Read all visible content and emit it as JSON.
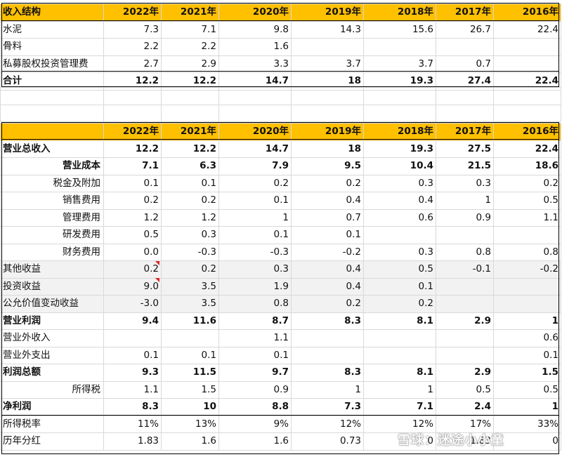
{
  "table1": {
    "header": [
      "收入结构",
      "2022年",
      "2021年",
      "2020年",
      "2019年",
      "2018年",
      "2017年",
      "2016年"
    ],
    "rows": [
      {
        "label": "水泥",
        "values": [
          "7.3",
          "7.1",
          "9.8",
          "14.3",
          "15.6",
          "26.7",
          "22.4"
        ]
      },
      {
        "label": "骨料",
        "values": [
          "2.2",
          "2.2",
          "1.6",
          "",
          "",
          "",
          ""
        ]
      },
      {
        "label": "私募股权投资管理费",
        "values": [
          "2.7",
          "2.9",
          "3.3",
          "3.7",
          "3.7",
          "0.7",
          ""
        ]
      },
      {
        "label": "合计",
        "values": [
          "12.2",
          "12.2",
          "14.7",
          "18",
          "19.3",
          "27.4",
          "22.4"
        ]
      }
    ]
  },
  "table2": {
    "header": [
      "",
      "2022年",
      "2021年",
      "2020年",
      "2019年",
      "2018年",
      "2017年",
      "2016年"
    ],
    "rows": [
      {
        "label": "营业总收入",
        "values": [
          "12.2",
          "12.2",
          "14.7",
          "18",
          "19.3",
          "27.5",
          "22.4"
        ]
      },
      {
        "label": "营业成本",
        "values": [
          "7.1",
          "6.3",
          "7.9",
          "9.5",
          "10.4",
          "21.5",
          "18.6"
        ]
      },
      {
        "label": "税金及附加",
        "values": [
          "0.1",
          "0.1",
          "0.2",
          "0.2",
          "0.3",
          "0.3",
          "0.2"
        ]
      },
      {
        "label": "销售费用",
        "values": [
          "0.2",
          "0.2",
          "0.1",
          "0.4",
          "0.4",
          "1",
          "0.5"
        ]
      },
      {
        "label": "管理费用",
        "values": [
          "1.2",
          "1.2",
          "1",
          "0.7",
          "0.6",
          "0.9",
          "1.1"
        ]
      },
      {
        "label": "研发费用",
        "values": [
          "0.5",
          "0.3",
          "0.1",
          "0.1",
          "",
          "",
          ""
        ]
      },
      {
        "label": "财务费用",
        "values": [
          "0.0",
          "-0.3",
          "-0.3",
          "-0.2",
          "0.3",
          "0.8",
          "0.8"
        ]
      },
      {
        "label": "其他收益",
        "values": [
          "0.2",
          "0.2",
          "0.3",
          "0.4",
          "0.5",
          "-0.1",
          "-0.2"
        ]
      },
      {
        "label": "投资收益",
        "values": [
          "9.0",
          "3.5",
          "1.9",
          "0.4",
          "0.1",
          "",
          ""
        ]
      },
      {
        "label": "公允价值变动收益",
        "values": [
          "-3.0",
          "3.5",
          "0.8",
          "0.2",
          "0.2",
          "",
          ""
        ]
      },
      {
        "label": "营业利润",
        "values": [
          "9.4",
          "11.6",
          "8.7",
          "8.3",
          "8.1",
          "2.9",
          "1"
        ]
      },
      {
        "label": "营业外收入",
        "values": [
          "",
          "",
          "1.1",
          "",
          "",
          "",
          "0.6"
        ]
      },
      {
        "label": "营业外支出",
        "values": [
          "0.1",
          "0.1",
          "0.1",
          "",
          "",
          "",
          "0.1"
        ]
      },
      {
        "label": "利润总额",
        "values": [
          "9.3",
          "11.5",
          "9.7",
          "8.3",
          "8.1",
          "2.9",
          "1.5"
        ]
      },
      {
        "label": "所得税",
        "values": [
          "1.1",
          "1.5",
          "0.9",
          "1",
          "1",
          "0.5",
          "0.5"
        ]
      },
      {
        "label": "净利润",
        "values": [
          "8.3",
          "10",
          "8.8",
          "7.3",
          "7.1",
          "2.4",
          "1"
        ]
      },
      {
        "label": "所得税率",
        "values": [
          "11%",
          "13%",
          "9%",
          "12%",
          "12%",
          "17%",
          "33%"
        ]
      },
      {
        "label": "历年分红",
        "values": [
          "1.83",
          "1.6",
          "1.6",
          "0.73",
          "0",
          "1.83",
          "0"
        ]
      }
    ]
  },
  "watermark": "雪球：迷途小小童",
  "colors": {
    "header_bg": "#ffc000",
    "shaded_bg": "#f2f2f2",
    "comment_flag": "#e02020"
  }
}
